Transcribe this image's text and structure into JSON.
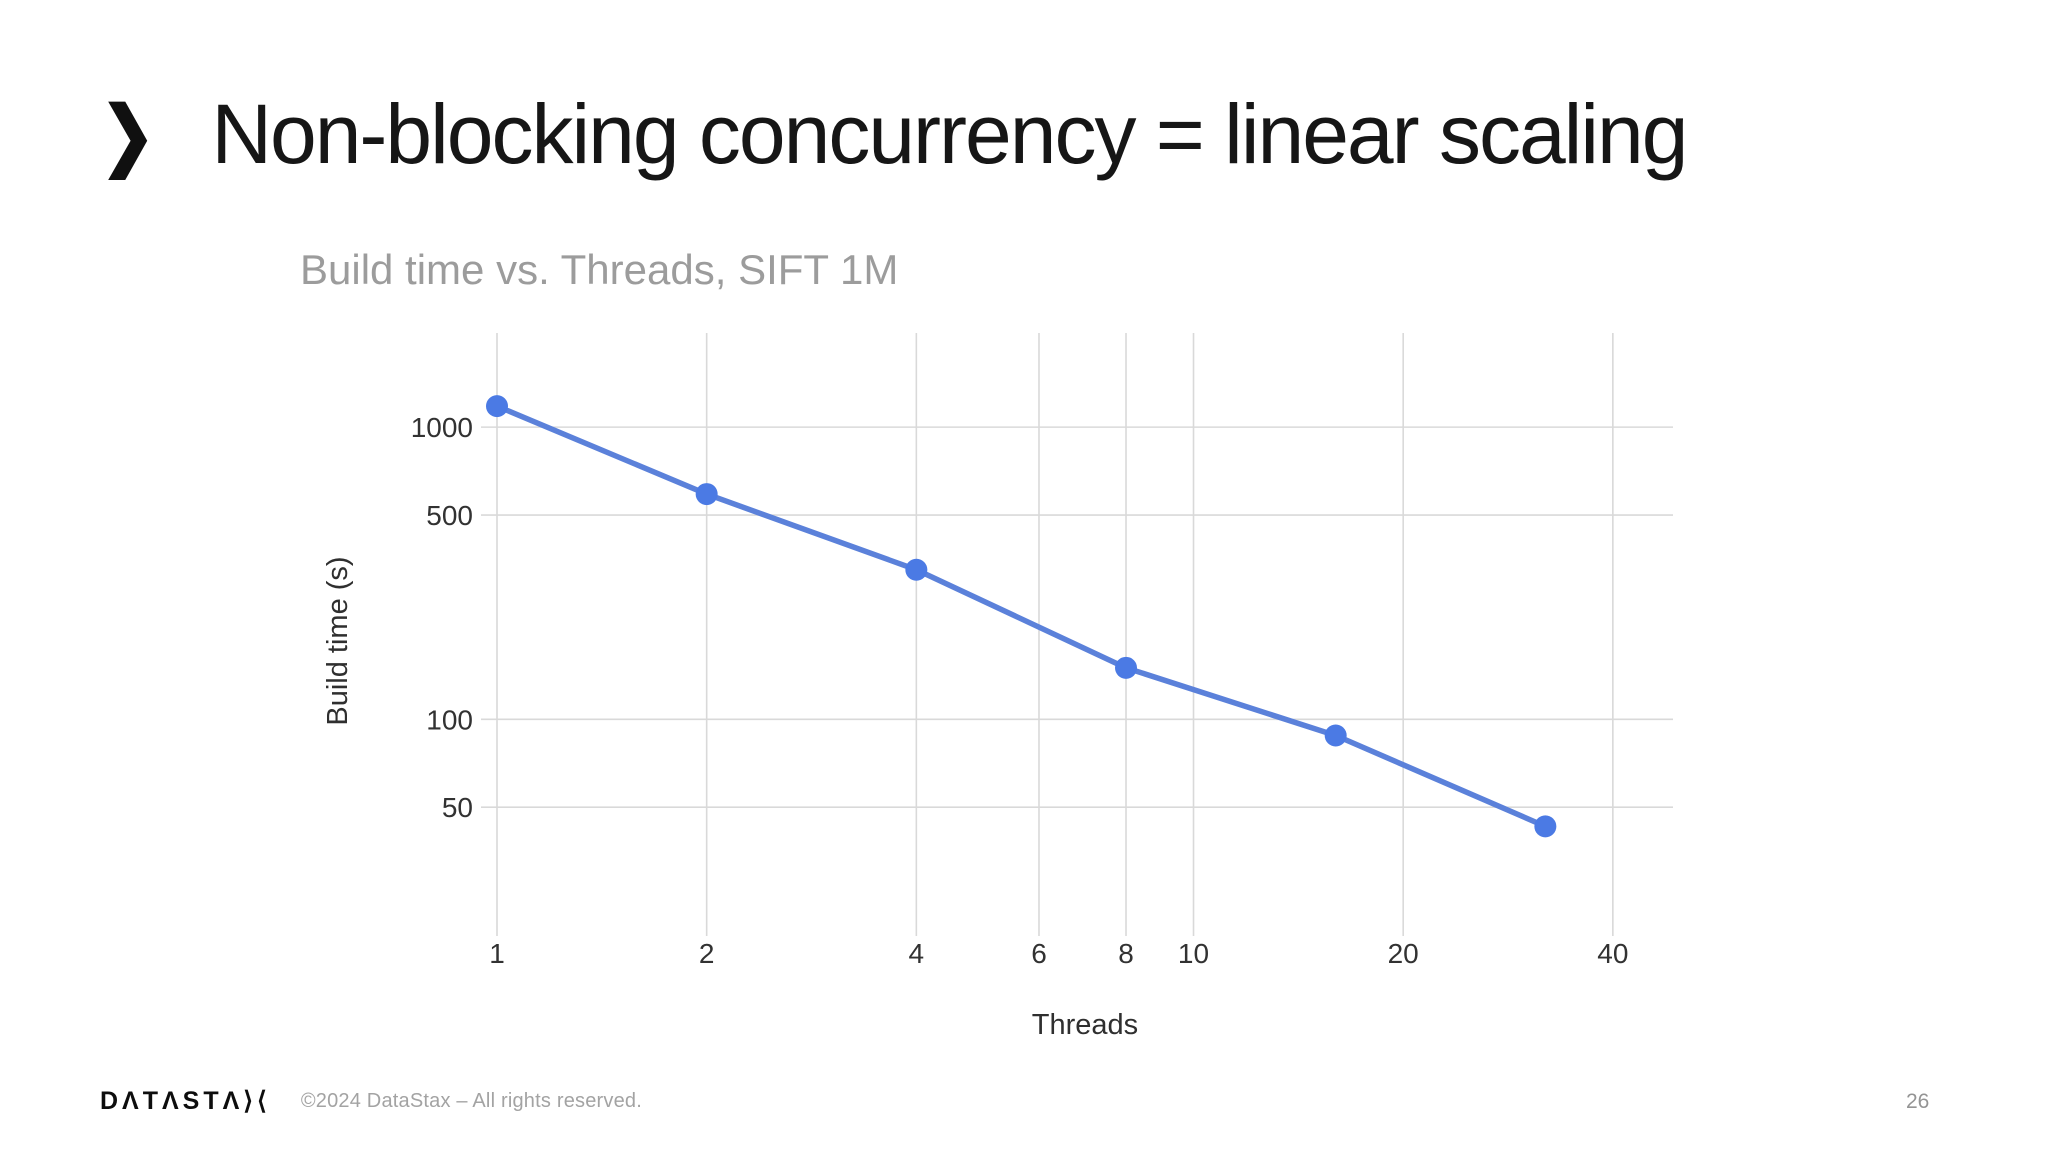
{
  "slide": {
    "title": "Non-blocking concurrency = linear scaling",
    "bullet_glyph": "❯",
    "page_number": "26"
  },
  "footer": {
    "brand": "DataStax",
    "logo_display": "DΛTΛSTΛ⟩⟨",
    "copyright": "©2024 DataStax – All rights reserved."
  },
  "chart_data": {
    "type": "line",
    "title": "Build time vs. Threads, SIFT 1M",
    "xlabel": "Threads",
    "ylabel": "Build time (s)",
    "x_scale": "log",
    "y_scale": "log",
    "x": [
      1,
      2,
      4,
      8,
      16,
      32
    ],
    "series": [
      {
        "name": "Build time (s)",
        "values": [
          1180,
          590,
          325,
          150,
          88,
          43
        ]
      }
    ],
    "x_ticks": [
      1,
      2,
      4,
      6,
      8,
      10,
      20,
      40
    ],
    "y_ticks": [
      50,
      100,
      500,
      1000
    ],
    "xlim": [
      1,
      48.8
    ],
    "ylim": [
      19,
      2100
    ],
    "grid": true,
    "legend": false,
    "colors": {
      "line": "#5b81da",
      "marker": "#4b7ae4",
      "grid": "#d9d9d9",
      "tick_text": "#323232",
      "axis_label": "#2f2f2f",
      "title": "#9c9c9c"
    }
  }
}
